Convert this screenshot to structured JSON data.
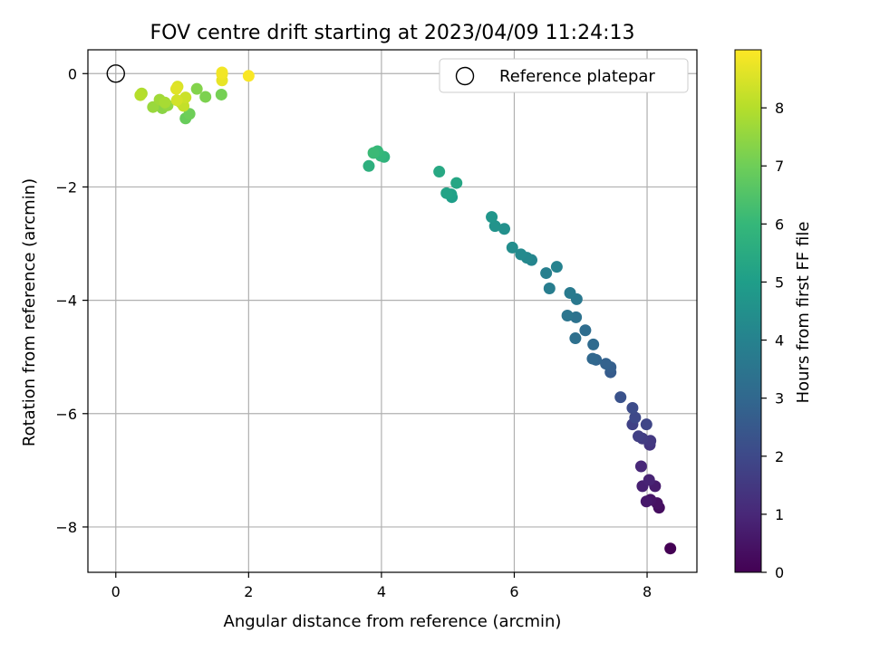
{
  "chart_data": {
    "type": "scatter",
    "title": "FOV centre drift starting at 2023/04/09 11:24:13",
    "xlabel": "Angular distance from reference (arcmin)",
    "ylabel": "Rotation from reference (arcmin)",
    "xlim": [
      -0.42,
      8.75
    ],
    "ylim": [
      -8.8,
      0.42
    ],
    "x_ticks": [
      0,
      2,
      4,
      6,
      8
    ],
    "y_ticks": [
      0,
      -2,
      -4,
      -6,
      -8
    ],
    "grid": true,
    "legend": {
      "placement": "top-right",
      "entries": [
        {
          "label": "Reference platepar",
          "marker": "open-circle"
        }
      ]
    },
    "colorbar": {
      "label": "Hours from first FF file",
      "colormap": "viridis",
      "range": [
        0,
        9.0
      ],
      "ticks": [
        0,
        1,
        2,
        3,
        4,
        5,
        6,
        7,
        8
      ]
    },
    "reference_point": {
      "x": 0,
      "y": 0
    },
    "series": [
      {
        "points": [
          [
            8.35,
            -8.38,
            0.0
          ],
          [
            8.18,
            -7.66,
            0.3
          ],
          [
            8.15,
            -7.58,
            0.4
          ],
          [
            8.05,
            -7.52,
            0.5
          ],
          [
            7.99,
            -7.55,
            0.6
          ],
          [
            8.12,
            -7.28,
            0.7
          ],
          [
            7.93,
            -7.28,
            0.8
          ],
          [
            8.03,
            -7.17,
            0.9
          ],
          [
            7.91,
            -6.93,
            1.0
          ],
          [
            8.04,
            -6.55,
            1.4
          ],
          [
            8.05,
            -6.48,
            1.5
          ],
          [
            7.93,
            -6.44,
            1.6
          ],
          [
            7.87,
            -6.4,
            1.7
          ],
          [
            7.78,
            -6.19,
            1.8
          ],
          [
            7.99,
            -6.19,
            1.9
          ],
          [
            7.82,
            -6.07,
            2.0
          ],
          [
            7.78,
            -5.9,
            2.1
          ],
          [
            7.6,
            -5.71,
            2.3
          ],
          [
            7.45,
            -5.27,
            2.6
          ],
          [
            7.45,
            -5.18,
            2.7
          ],
          [
            7.38,
            -5.12,
            2.8
          ],
          [
            7.23,
            -5.05,
            2.9
          ],
          [
            7.18,
            -5.03,
            3.0
          ],
          [
            7.19,
            -4.78,
            3.1
          ],
          [
            7.07,
            -4.53,
            3.2
          ],
          [
            6.92,
            -4.67,
            3.3
          ],
          [
            6.93,
            -4.3,
            3.4
          ],
          [
            6.8,
            -4.27,
            3.5
          ],
          [
            6.94,
            -3.98,
            3.6
          ],
          [
            6.84,
            -3.87,
            3.7
          ],
          [
            6.53,
            -3.79,
            3.8
          ],
          [
            6.48,
            -3.52,
            3.9
          ],
          [
            6.64,
            -3.41,
            4.0
          ],
          [
            6.26,
            -3.29,
            4.1
          ],
          [
            6.19,
            -3.25,
            4.2
          ],
          [
            6.1,
            -3.19,
            4.3
          ],
          [
            5.97,
            -3.07,
            4.4
          ],
          [
            5.85,
            -2.74,
            4.5
          ],
          [
            5.71,
            -2.69,
            4.6
          ],
          [
            5.66,
            -2.53,
            4.7
          ],
          [
            5.06,
            -2.18,
            5.0
          ],
          [
            5.05,
            -2.13,
            5.1
          ],
          [
            4.98,
            -2.11,
            5.2
          ],
          [
            5.13,
            -1.93,
            5.3
          ],
          [
            4.87,
            -1.73,
            5.4
          ],
          [
            3.81,
            -1.63,
            5.7
          ],
          [
            4.04,
            -1.47,
            5.8
          ],
          [
            3.99,
            -1.45,
            5.9
          ],
          [
            3.94,
            -1.37,
            6.0
          ],
          [
            3.88,
            -1.4,
            6.1
          ],
          [
            1.05,
            -0.79,
            6.9
          ],
          [
            1.11,
            -0.71,
            7.0
          ],
          [
            1.59,
            -0.37,
            7.1
          ],
          [
            1.35,
            -0.41,
            7.2
          ],
          [
            1.22,
            -0.27,
            7.3
          ],
          [
            0.7,
            -0.61,
            7.4
          ],
          [
            0.78,
            -0.56,
            7.5
          ],
          [
            0.56,
            -0.59,
            7.6
          ],
          [
            0.66,
            -0.46,
            7.7
          ],
          [
            0.74,
            -0.51,
            7.8
          ],
          [
            0.39,
            -0.35,
            7.9
          ],
          [
            0.37,
            -0.38,
            8.0
          ],
          [
            0.98,
            -0.51,
            8.1
          ],
          [
            1.02,
            -0.57,
            8.2
          ],
          [
            1.05,
            -0.42,
            8.3
          ],
          [
            0.92,
            -0.47,
            8.4
          ],
          [
            0.93,
            -0.23,
            8.5
          ],
          [
            0.91,
            -0.27,
            8.6
          ],
          [
            1.6,
            -0.12,
            8.7
          ],
          [
            1.6,
            -0.01,
            8.8
          ],
          [
            1.6,
            0.02,
            8.85
          ],
          [
            2.0,
            -0.04,
            8.95
          ]
        ]
      }
    ]
  }
}
